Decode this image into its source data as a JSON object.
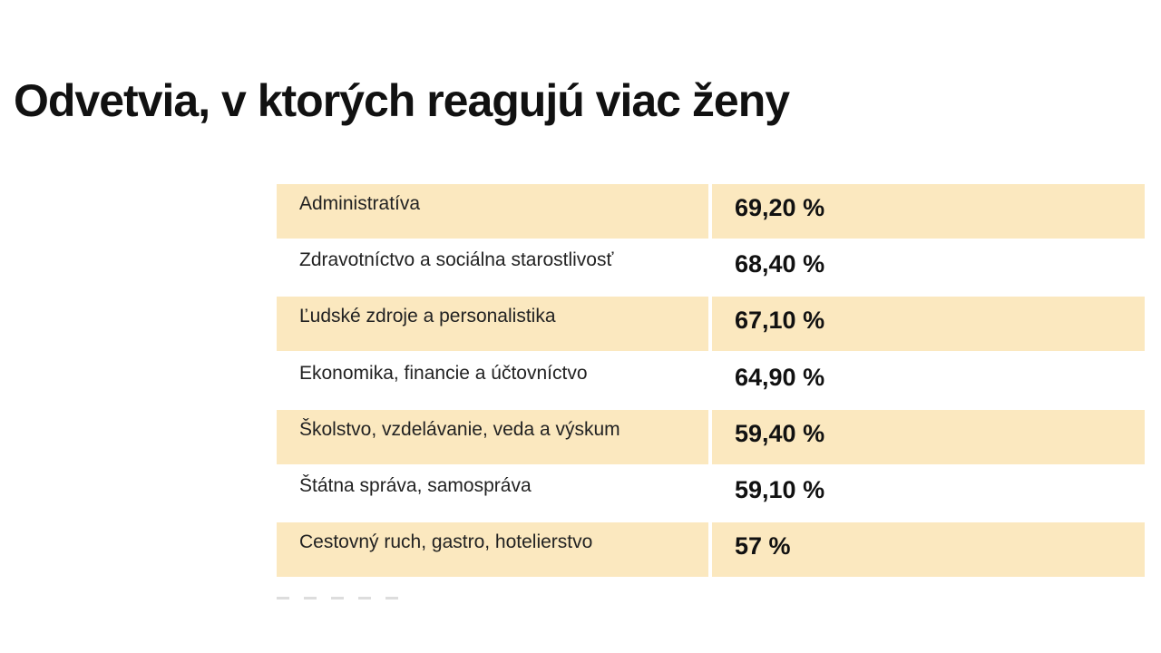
{
  "title": "Odvetvia, v ktorých reagujú viac ženy",
  "rows": [
    {
      "label": "Administratíva",
      "value": "69,20 %"
    },
    {
      "label": "Zdravotníctvo a sociálna starostlivosť",
      "value": "68,40 %"
    },
    {
      "label": "Ľudské zdroje a personalistika",
      "value": "67,10 %"
    },
    {
      "label": "Ekonomika, financie a účtovníctvo",
      "value": "64,90 %"
    },
    {
      "label": "Školstvo, vzdelávanie, veda a výskum",
      "value": "59,40 %"
    },
    {
      "label": "Štátna správa, samospráva",
      "value": "59,10 %"
    },
    {
      "label": "Cestovný ruch, gastro, hotelierstvo",
      "value": "57 %"
    }
  ],
  "colors": {
    "row_shade": "#fbe8bf"
  }
}
